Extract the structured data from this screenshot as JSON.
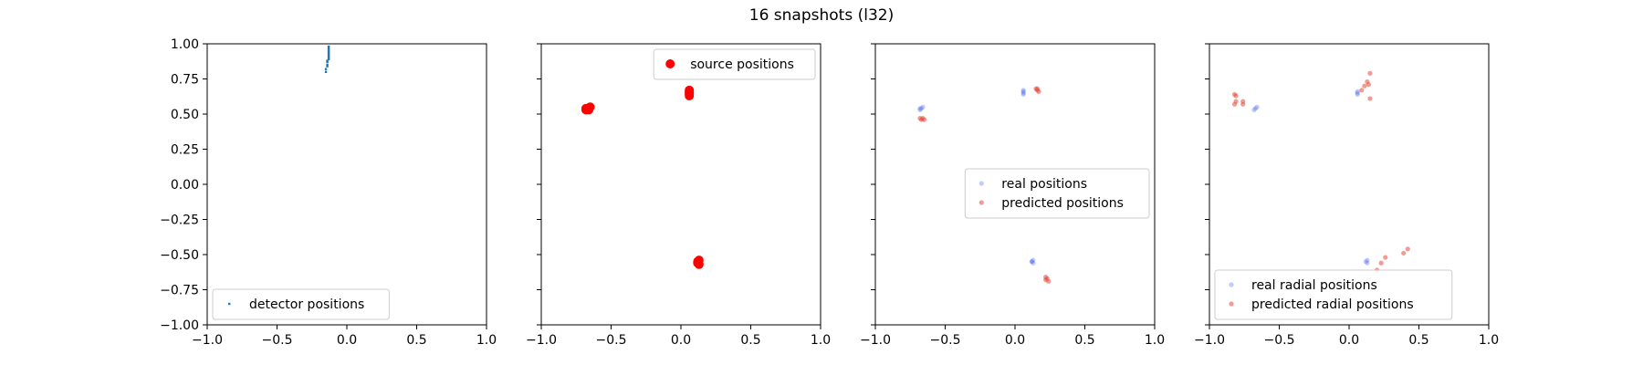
{
  "figure": {
    "title": "16 snapshots (l32)"
  },
  "chart_data": [
    {
      "type": "scatter",
      "xlim": [
        -1.0,
        1.0
      ],
      "ylim": [
        -1.0,
        1.0
      ],
      "x_ticks": [
        "−1.0",
        "−0.5",
        "0.0",
        "0.5",
        "1.0"
      ],
      "x_tick_values": [
        -1.0,
        -0.5,
        0.0,
        0.5,
        1.0
      ],
      "y_ticks": [
        "1.00",
        "0.75",
        "0.50",
        "0.25",
        "0.00",
        "−0.25",
        "−0.50",
        "−0.75",
        "−1.00"
      ],
      "y_tick_values": [
        1.0,
        0.75,
        0.5,
        0.25,
        0.0,
        -0.25,
        -0.5,
        -0.75,
        -1.0
      ],
      "legend_position": "lower-left",
      "series": [
        {
          "name": "detector positions",
          "color": "#1f77b4",
          "marker": "square-small",
          "opacity": 1.0,
          "x": [
            -0.13,
            -0.13,
            -0.13,
            -0.13,
            -0.13,
            -0.13,
            -0.13,
            -0.13,
            -0.13,
            -0.13,
            -0.14,
            -0.14,
            -0.14,
            -0.14,
            -0.15,
            -0.15
          ],
          "y": [
            0.98,
            0.97,
            0.96,
            0.95,
            0.94,
            0.93,
            0.92,
            0.91,
            0.9,
            0.89,
            0.88,
            0.87,
            0.85,
            0.84,
            0.82,
            0.8
          ]
        }
      ]
    },
    {
      "type": "scatter",
      "xlim": [
        -1.0,
        1.0
      ],
      "ylim": [
        -1.0,
        1.0
      ],
      "x_ticks": [
        "−1.0",
        "−0.5",
        "0.0",
        "0.5",
        "1.0"
      ],
      "x_tick_values": [
        -1.0,
        -0.5,
        0.0,
        0.5,
        1.0
      ],
      "y_ticks": [],
      "legend_position": "upper-right",
      "series": [
        {
          "name": "source positions",
          "color": "#ff0000",
          "marker": "circle-large",
          "opacity": 1.0,
          "x": [
            -0.68,
            -0.67,
            -0.66,
            -0.65,
            -0.68,
            -0.66,
            0.06,
            0.06,
            0.06,
            0.06,
            0.06,
            0.06,
            0.13,
            0.12,
            0.12,
            0.13
          ],
          "y": [
            0.53,
            0.54,
            0.54,
            0.55,
            0.54,
            0.53,
            0.67,
            0.66,
            0.65,
            0.64,
            0.63,
            0.65,
            -0.54,
            -0.55,
            -0.56,
            -0.57
          ]
        }
      ]
    },
    {
      "type": "scatter",
      "xlim": [
        -1.0,
        1.0
      ],
      "ylim": [
        -1.0,
        1.0
      ],
      "x_ticks": [
        "−1.0",
        "−0.5",
        "0.0",
        "0.5",
        "1.0"
      ],
      "x_tick_values": [
        -1.0,
        -0.5,
        0.0,
        0.5,
        1.0
      ],
      "y_ticks": [],
      "legend_position": "center-right",
      "series": [
        {
          "name": "real positions",
          "color": "#4f6df0",
          "marker": "circle-small",
          "opacity": 0.35,
          "x": [
            -0.68,
            -0.67,
            -0.66,
            -0.68,
            0.06,
            0.06,
            0.06,
            0.06,
            0.13,
            0.12,
            0.13,
            0.12
          ],
          "y": [
            0.53,
            0.54,
            0.55,
            0.54,
            0.67,
            0.66,
            0.65,
            0.64,
            -0.54,
            -0.55,
            -0.56,
            -0.55
          ]
        },
        {
          "name": "predicted positions",
          "color": "#e8493a",
          "marker": "circle-small",
          "opacity": 0.55,
          "x": [
            -0.68,
            -0.67,
            -0.66,
            -0.65,
            0.15,
            0.16,
            0.17,
            0.16,
            0.22,
            0.23,
            0.22,
            0.24
          ],
          "y": [
            0.47,
            0.46,
            0.47,
            0.46,
            0.68,
            0.67,
            0.66,
            0.68,
            -0.66,
            -0.67,
            -0.68,
            -0.69
          ]
        }
      ]
    },
    {
      "type": "scatter",
      "xlim": [
        -1.0,
        1.0
      ],
      "ylim": [
        -1.0,
        1.0
      ],
      "x_ticks": [
        "−1.0",
        "−0.5",
        "0.0",
        "0.5",
        "1.0"
      ],
      "x_tick_values": [
        -1.0,
        -0.5,
        0.0,
        0.5,
        1.0
      ],
      "y_ticks": [],
      "legend_position": "lower-left",
      "series": [
        {
          "name": "real radial positions",
          "color": "#4f6df0",
          "marker": "circle-small",
          "opacity": 0.35,
          "x": [
            -0.68,
            -0.67,
            -0.66,
            0.06,
            0.06,
            0.06,
            0.13,
            0.12,
            0.13
          ],
          "y": [
            0.53,
            0.54,
            0.55,
            0.66,
            0.65,
            0.64,
            -0.54,
            -0.55,
            -0.56
          ]
        },
        {
          "name": "predicted radial positions",
          "color": "#e8493a",
          "marker": "circle-small",
          "opacity": 0.55,
          "x": [
            -0.82,
            -0.81,
            -0.81,
            -0.76,
            -0.76,
            -0.82,
            0.11,
            0.13,
            0.15,
            0.15,
            0.09,
            0.14,
            0.2,
            0.23,
            0.26,
            0.39,
            0.42
          ],
          "y": [
            0.64,
            0.63,
            0.59,
            0.59,
            0.57,
            0.57,
            0.7,
            0.73,
            0.79,
            0.61,
            0.67,
            0.71,
            -0.61,
            -0.56,
            -0.52,
            -0.49,
            -0.46
          ]
        }
      ]
    }
  ]
}
